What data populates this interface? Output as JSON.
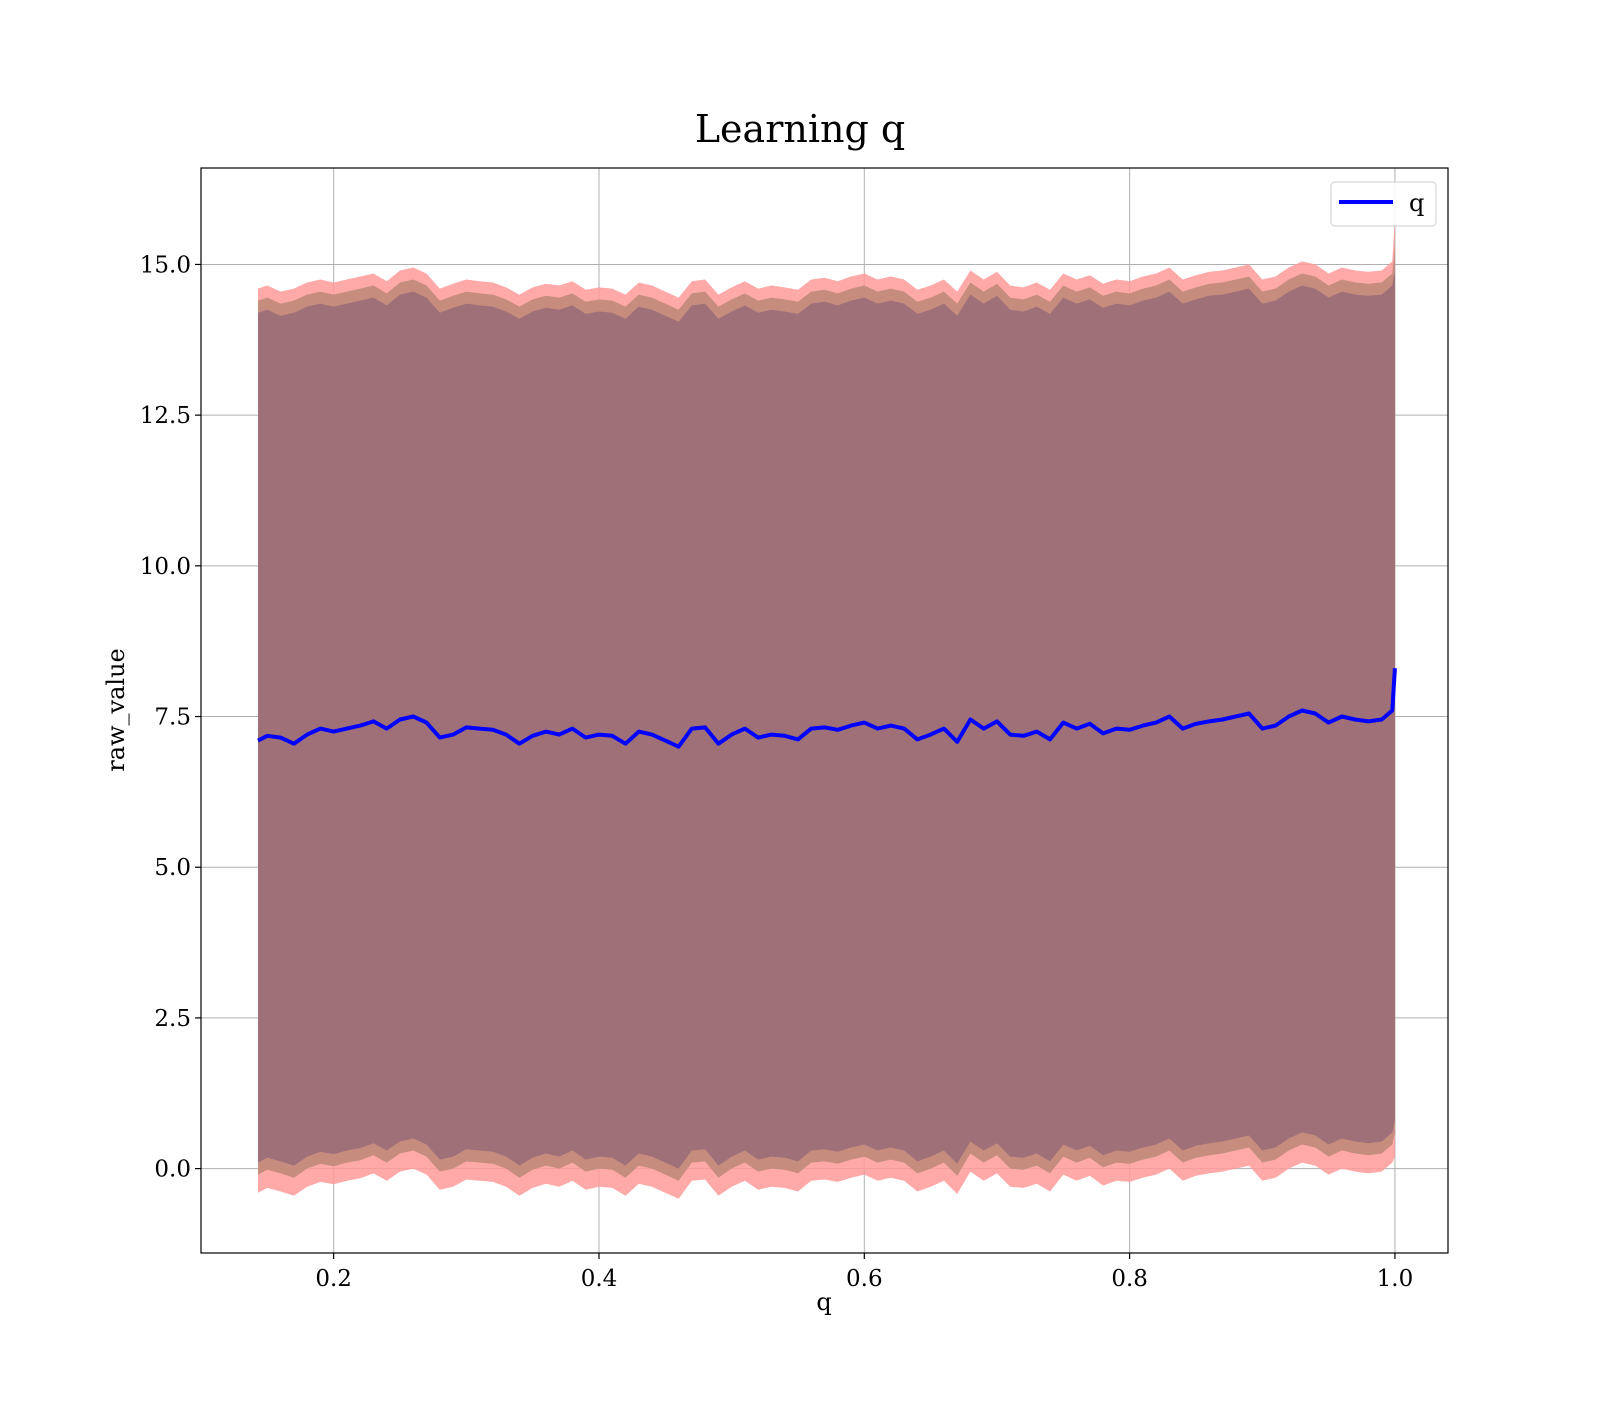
{
  "chart_data": {
    "type": "line",
    "title": "Learning q",
    "xlabel": "q",
    "ylabel": "raw_value",
    "xlim": [
      0.1,
      1.04
    ],
    "ylim": [
      -1.4,
      16.6
    ],
    "xticks": [
      0.2,
      0.4,
      0.6,
      0.8,
      1.0
    ],
    "xtick_labels": [
      "0.2",
      "0.4",
      "0.6",
      "0.8",
      "1.0"
    ],
    "yticks": [
      0.0,
      2.5,
      5.0,
      7.5,
      10.0,
      12.5,
      15.0
    ],
    "ytick_labels": [
      "0.0",
      "2.5",
      "5.0",
      "7.5",
      "10.0",
      "12.5",
      "15.0"
    ],
    "grid": true,
    "legend": {
      "placement": "upper-right",
      "entries": [
        "q"
      ]
    },
    "colors": {
      "line": "#0000ff",
      "band_outer": "#ff9a9a",
      "band_middle": "#c08a7a",
      "band_inner": "#a07078",
      "grid": "#b0b0b0"
    },
    "series": [
      {
        "name": "q",
        "x": [
          0.143,
          0.15,
          0.16,
          0.17,
          0.18,
          0.19,
          0.2,
          0.21,
          0.22,
          0.23,
          0.24,
          0.25,
          0.26,
          0.27,
          0.28,
          0.29,
          0.3,
          0.31,
          0.32,
          0.33,
          0.34,
          0.35,
          0.36,
          0.37,
          0.38,
          0.39,
          0.4,
          0.41,
          0.42,
          0.43,
          0.44,
          0.45,
          0.46,
          0.47,
          0.48,
          0.49,
          0.5,
          0.51,
          0.52,
          0.53,
          0.54,
          0.55,
          0.56,
          0.57,
          0.58,
          0.59,
          0.6,
          0.61,
          0.62,
          0.63,
          0.64,
          0.65,
          0.66,
          0.67,
          0.68,
          0.69,
          0.7,
          0.71,
          0.72,
          0.73,
          0.74,
          0.75,
          0.76,
          0.77,
          0.78,
          0.79,
          0.8,
          0.81,
          0.82,
          0.83,
          0.84,
          0.85,
          0.86,
          0.87,
          0.88,
          0.89,
          0.9,
          0.91,
          0.92,
          0.93,
          0.94,
          0.95,
          0.96,
          0.97,
          0.98,
          0.99,
          0.998,
          1.0
        ],
        "y": [
          7.1,
          7.18,
          7.15,
          7.05,
          7.2,
          7.3,
          7.25,
          7.3,
          7.35,
          7.42,
          7.3,
          7.45,
          7.5,
          7.4,
          7.15,
          7.2,
          7.32,
          7.3,
          7.28,
          7.2,
          7.05,
          7.18,
          7.25,
          7.2,
          7.3,
          7.15,
          7.2,
          7.18,
          7.05,
          7.25,
          7.2,
          7.1,
          7.0,
          7.3,
          7.32,
          7.05,
          7.2,
          7.3,
          7.15,
          7.2,
          7.18,
          7.12,
          7.3,
          7.32,
          7.28,
          7.35,
          7.4,
          7.3,
          7.35,
          7.3,
          7.12,
          7.2,
          7.3,
          7.08,
          7.45,
          7.3,
          7.42,
          7.2,
          7.18,
          7.25,
          7.12,
          7.4,
          7.3,
          7.38,
          7.22,
          7.3,
          7.28,
          7.35,
          7.4,
          7.5,
          7.3,
          7.38,
          7.42,
          7.45,
          7.5,
          7.55,
          7.3,
          7.35,
          7.5,
          7.6,
          7.55,
          7.4,
          7.5,
          7.45,
          7.42,
          7.45,
          7.6,
          8.3
        ],
        "band_outer_upper": [
          14.6,
          14.65,
          14.55,
          14.6,
          14.7,
          14.75,
          14.7,
          14.75,
          14.8,
          14.85,
          14.72,
          14.9,
          14.95,
          14.85,
          14.6,
          14.68,
          14.75,
          14.72,
          14.7,
          14.62,
          14.5,
          14.62,
          14.68,
          14.65,
          14.72,
          14.58,
          14.62,
          14.6,
          14.5,
          14.7,
          14.65,
          14.55,
          14.45,
          14.72,
          14.75,
          14.5,
          14.62,
          14.72,
          14.6,
          14.65,
          14.62,
          14.58,
          14.75,
          14.78,
          14.72,
          14.8,
          14.85,
          14.75,
          14.8,
          14.75,
          14.58,
          14.65,
          14.75,
          14.55,
          14.9,
          14.75,
          14.88,
          14.65,
          14.62,
          14.7,
          14.58,
          14.85,
          14.75,
          14.82,
          14.68,
          14.75,
          14.72,
          14.8,
          14.85,
          14.95,
          14.75,
          14.82,
          14.88,
          14.9,
          14.95,
          15.0,
          14.75,
          14.8,
          14.95,
          15.05,
          15.0,
          14.85,
          14.95,
          14.9,
          14.88,
          14.9,
          15.05,
          15.8
        ],
        "band_outer_lower": [
          -0.4,
          -0.32,
          -0.38,
          -0.45,
          -0.3,
          -0.22,
          -0.26,
          -0.2,
          -0.16,
          -0.08,
          -0.2,
          -0.05,
          0.0,
          -0.1,
          -0.35,
          -0.3,
          -0.18,
          -0.2,
          -0.22,
          -0.3,
          -0.45,
          -0.32,
          -0.25,
          -0.3,
          -0.2,
          -0.35,
          -0.3,
          -0.32,
          -0.45,
          -0.25,
          -0.3,
          -0.4,
          -0.5,
          -0.2,
          -0.18,
          -0.45,
          -0.3,
          -0.2,
          -0.35,
          -0.3,
          -0.32,
          -0.38,
          -0.2,
          -0.18,
          -0.22,
          -0.15,
          -0.1,
          -0.2,
          -0.15,
          -0.2,
          -0.38,
          -0.3,
          -0.2,
          -0.42,
          -0.05,
          -0.2,
          -0.08,
          -0.3,
          -0.32,
          -0.25,
          -0.38,
          -0.1,
          -0.2,
          -0.12,
          -0.28,
          -0.2,
          -0.22,
          -0.15,
          -0.1,
          0.0,
          -0.2,
          -0.12,
          -0.08,
          -0.05,
          0.0,
          0.05,
          -0.2,
          -0.15,
          0.0,
          0.1,
          0.05,
          -0.1,
          0.0,
          -0.05,
          -0.08,
          -0.05,
          0.1,
          0.2
        ],
        "band_middle_upper": [
          14.4,
          14.45,
          14.35,
          14.4,
          14.5,
          14.55,
          14.5,
          14.55,
          14.6,
          14.65,
          14.52,
          14.7,
          14.75,
          14.65,
          14.4,
          14.48,
          14.55,
          14.52,
          14.5,
          14.42,
          14.3,
          14.42,
          14.48,
          14.45,
          14.52,
          14.38,
          14.42,
          14.4,
          14.3,
          14.5,
          14.45,
          14.35,
          14.25,
          14.52,
          14.55,
          14.3,
          14.42,
          14.52,
          14.4,
          14.45,
          14.42,
          14.38,
          14.55,
          14.58,
          14.52,
          14.6,
          14.65,
          14.55,
          14.6,
          14.55,
          14.38,
          14.45,
          14.55,
          14.35,
          14.7,
          14.55,
          14.68,
          14.45,
          14.42,
          14.5,
          14.38,
          14.65,
          14.55,
          14.62,
          14.48,
          14.55,
          14.52,
          14.6,
          14.65,
          14.75,
          14.55,
          14.62,
          14.68,
          14.7,
          14.75,
          14.8,
          14.55,
          14.6,
          14.75,
          14.85,
          14.8,
          14.65,
          14.75,
          14.7,
          14.68,
          14.7,
          14.85,
          15.3
        ],
        "band_middle_lower": [
          -0.1,
          -0.02,
          -0.08,
          -0.15,
          0.0,
          0.08,
          0.04,
          0.1,
          0.14,
          0.22,
          0.1,
          0.25,
          0.3,
          0.2,
          -0.05,
          0.0,
          0.12,
          0.1,
          0.08,
          0.0,
          -0.15,
          -0.02,
          0.05,
          0.0,
          0.1,
          -0.05,
          0.0,
          -0.02,
          -0.15,
          0.05,
          0.0,
          -0.1,
          -0.2,
          0.1,
          0.12,
          -0.15,
          0.0,
          0.1,
          -0.05,
          0.0,
          -0.02,
          -0.08,
          0.1,
          0.12,
          0.08,
          0.15,
          0.2,
          0.1,
          0.15,
          0.1,
          -0.08,
          0.0,
          0.1,
          -0.12,
          0.25,
          0.1,
          0.22,
          0.0,
          -0.02,
          0.05,
          -0.08,
          0.2,
          0.1,
          0.18,
          0.02,
          0.1,
          0.08,
          0.15,
          0.2,
          0.3,
          0.1,
          0.18,
          0.22,
          0.25,
          0.3,
          0.35,
          0.1,
          0.15,
          0.3,
          0.4,
          0.35,
          0.2,
          0.3,
          0.25,
          0.22,
          0.25,
          0.4,
          0.6
        ],
        "band_inner_upper": [
          14.2,
          14.25,
          14.15,
          14.2,
          14.3,
          14.35,
          14.3,
          14.35,
          14.4,
          14.45,
          14.32,
          14.5,
          14.55,
          14.45,
          14.2,
          14.28,
          14.35,
          14.32,
          14.3,
          14.22,
          14.1,
          14.22,
          14.28,
          14.25,
          14.32,
          14.18,
          14.22,
          14.2,
          14.1,
          14.3,
          14.25,
          14.15,
          14.05,
          14.32,
          14.35,
          14.1,
          14.22,
          14.32,
          14.2,
          14.25,
          14.22,
          14.18,
          14.35,
          14.38,
          14.32,
          14.4,
          14.45,
          14.35,
          14.4,
          14.35,
          14.18,
          14.25,
          14.35,
          14.15,
          14.5,
          14.35,
          14.48,
          14.25,
          14.22,
          14.3,
          14.18,
          14.45,
          14.35,
          14.42,
          14.28,
          14.35,
          14.32,
          14.4,
          14.45,
          14.55,
          14.35,
          14.42,
          14.48,
          14.5,
          14.55,
          14.6,
          14.35,
          14.4,
          14.55,
          14.65,
          14.6,
          14.45,
          14.55,
          14.5,
          14.48,
          14.5,
          14.65,
          14.9
        ],
        "band_inner_lower": [
          0.1,
          0.18,
          0.12,
          0.05,
          0.2,
          0.28,
          0.24,
          0.3,
          0.34,
          0.42,
          0.3,
          0.45,
          0.5,
          0.4,
          0.15,
          0.2,
          0.32,
          0.3,
          0.28,
          0.2,
          0.05,
          0.18,
          0.25,
          0.2,
          0.3,
          0.15,
          0.2,
          0.18,
          0.05,
          0.25,
          0.2,
          0.1,
          0.0,
          0.3,
          0.32,
          0.05,
          0.2,
          0.3,
          0.15,
          0.2,
          0.18,
          0.12,
          0.3,
          0.32,
          0.28,
          0.35,
          0.4,
          0.3,
          0.35,
          0.3,
          0.12,
          0.2,
          0.3,
          0.08,
          0.45,
          0.3,
          0.42,
          0.2,
          0.18,
          0.25,
          0.12,
          0.4,
          0.3,
          0.38,
          0.22,
          0.3,
          0.28,
          0.35,
          0.4,
          0.5,
          0.3,
          0.38,
          0.42,
          0.45,
          0.5,
          0.55,
          0.3,
          0.35,
          0.5,
          0.6,
          0.55,
          0.4,
          0.5,
          0.45,
          0.42,
          0.45,
          0.6,
          0.8
        ]
      }
    ]
  }
}
